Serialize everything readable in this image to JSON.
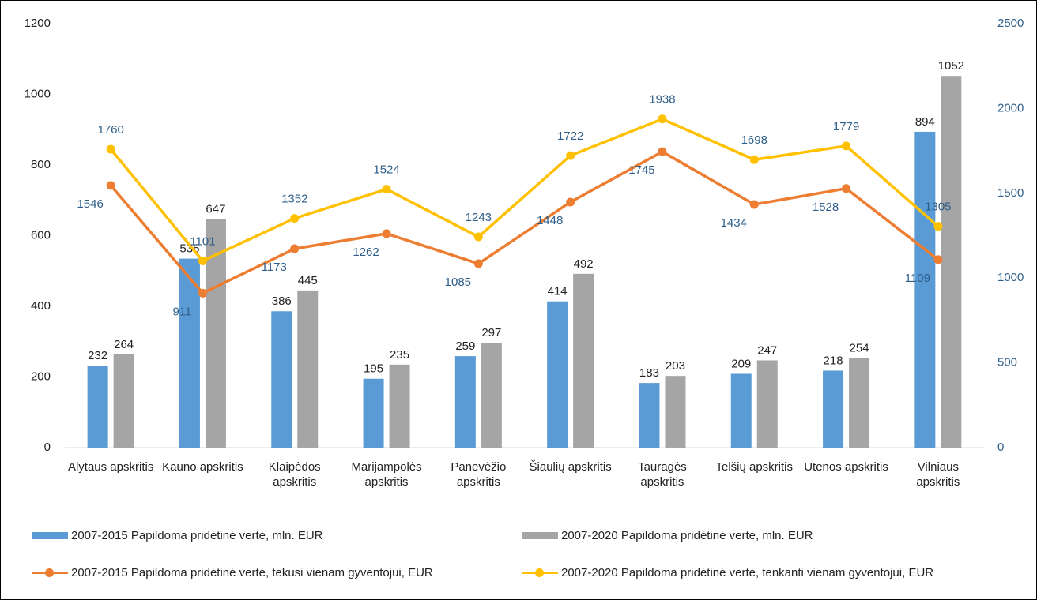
{
  "chart_data": {
    "type": "bar",
    "categories": [
      "Alytaus apskritis",
      "Kauno apskritis",
      "Klaipėdos apskritis",
      "Marijampolės apskritis",
      "Panevėžio apskritis",
      "Šiaulių apskritis",
      "Tauragės apskritis",
      "Telšių apskritis",
      "Utenos apskritis",
      "Vilniaus apskritis"
    ],
    "series": [
      {
        "name": "2007-2015 Papildoma pridėtinė vertė, mln. EUR",
        "type": "bar",
        "color": "#5b9bd5",
        "values": [
          232,
          535,
          386,
          195,
          259,
          414,
          183,
          209,
          218,
          894
        ]
      },
      {
        "name": "2007-2020 Papildoma pridėtinė vertė, mln. EUR",
        "type": "bar",
        "color": "#a5a5a5",
        "values": [
          264,
          647,
          445,
          235,
          297,
          492,
          203,
          247,
          254,
          1052
        ]
      },
      {
        "name": "2007-2015 Papildoma pridėtinė vertė, tekusi vienam gyventojui, EUR",
        "type": "line",
        "axis": "y2",
        "color": "#ed7d31",
        "values": [
          1546,
          911,
          1173,
          1262,
          1085,
          1448,
          1745,
          1434,
          1528,
          1109
        ]
      },
      {
        "name": "2007-2020 Papildoma pridėtinė vertė, tenkanti vienam gyventojui, EUR",
        "type": "line",
        "axis": "y2",
        "color": "#ffc000",
        "values": [
          1760,
          1101,
          1352,
          1524,
          1243,
          1722,
          1938,
          1698,
          1779,
          1305
        ]
      }
    ],
    "ylim": [
      0,
      1200
    ],
    "yticks": [
      0,
      200,
      400,
      600,
      800,
      1000,
      1200
    ],
    "y2lim": [
      0,
      2500
    ],
    "y2ticks": [
      0,
      500,
      1000,
      1500,
      2000,
      2500
    ],
    "legend": "bottom"
  }
}
